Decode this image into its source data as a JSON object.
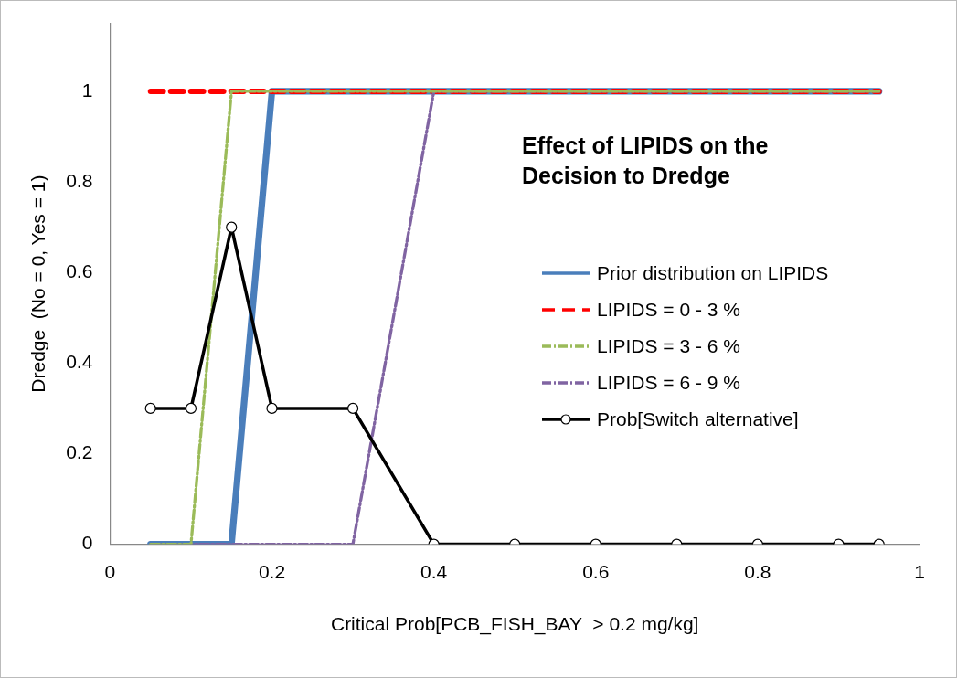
{
  "chart_data": {
    "type": "line",
    "title": "Effect of LIPIDS on the Decision to Dredge",
    "xlabel": "Critical Prob[PCB_FISH_BAY  > 0.2 mg/kg]",
    "ylabel": "Dredge  (No = 0, Yes = 1)",
    "x": [
      0.05,
      0.1,
      0.15,
      0.2,
      0.3,
      0.4,
      0.5,
      0.6,
      0.7,
      0.8,
      0.9,
      0.95
    ],
    "series": [
      {
        "name": "Prior distribution on LIPIDS",
        "color": "#4a7ebb",
        "line_style": "solid",
        "marker": "none",
        "values": [
          0,
          0,
          0,
          1,
          1,
          1,
          1,
          1,
          1,
          1,
          1,
          1
        ]
      },
      {
        "name": "LIPIDS = 0 - 3 %",
        "color": "#ff0000",
        "line_style": "dashed",
        "marker": "none",
        "values": [
          1,
          1,
          1,
          1,
          1,
          1,
          1,
          1,
          1,
          1,
          1,
          1
        ]
      },
      {
        "name": "LIPIDS = 3 - 6 %",
        "color": "#9bbb59",
        "line_style": "dashdot",
        "marker": "none",
        "values": [
          0,
          0,
          1,
          1,
          1,
          1,
          1,
          1,
          1,
          1,
          1,
          1
        ]
      },
      {
        "name": "LIPIDS = 6 - 9 %",
        "color": "#8064a2",
        "line_style": "dashdot",
        "marker": "none",
        "values": [
          0,
          0,
          0,
          0,
          0,
          1,
          1,
          1,
          1,
          1,
          1,
          1
        ]
      },
      {
        "name": "Prob[Switch alternative]",
        "color": "#000000",
        "line_style": "solid",
        "marker": "circle",
        "values": [
          0.3,
          0.3,
          0.7,
          0.3,
          0.3,
          0,
          0,
          0,
          0,
          0,
          0,
          0
        ]
      }
    ],
    "xlim": [
      0,
      1
    ],
    "xticks": [
      0,
      0.2,
      0.4,
      0.6,
      0.8,
      1
    ],
    "ylim": [
      0,
      1.15
    ],
    "yticks": [
      0,
      0.2,
      0.4,
      0.6,
      0.8,
      1
    ],
    "grid": false,
    "legend": "right"
  }
}
